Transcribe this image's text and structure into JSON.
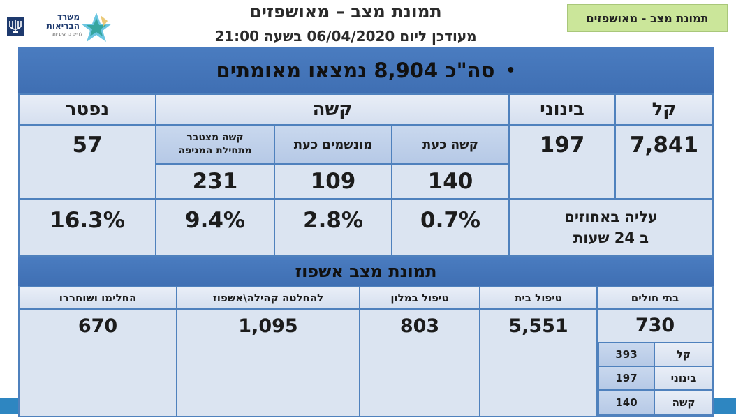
{
  "header": {
    "title": "תמונת מצב – מאושפזים",
    "subtitle": "מעודכן ליום 06/04/2020 בשעה 21:00",
    "badge": "תמונת מצב - מאושפזים"
  },
  "logo": {
    "ministry_line1": "משרד",
    "ministry_line2": "הבריאות",
    "tagline": "לחיים בריאים יותר"
  },
  "summary": {
    "total_text": "סה\"כ 8,904 נמצאו מאומתים",
    "bullet": "•"
  },
  "severity": {
    "headers": {
      "mild": "קל",
      "moderate": "בינוני",
      "severe": "קשה",
      "deceased": "נפטר"
    },
    "severe_sub": {
      "severe_now": "קשה כעת",
      "ventilated_now": "מונשמים כעת",
      "severe_cumulative": "קשה מצטבר מתחילת המגיפה"
    },
    "values": {
      "mild": "7,841",
      "moderate": "197",
      "severe_now": "140",
      "ventilated_now": "109",
      "severe_cumulative": "231",
      "deceased": "57"
    },
    "increase_label": "עליה באחוזים ב 24 שעות",
    "increase": {
      "severe_now": "0.7%",
      "ventilated_now": "2.8%",
      "severe_cumulative": "9.4%",
      "deceased": "16.3%"
    }
  },
  "hospitalization": {
    "title": "תמונת מצב אשפוז",
    "headers": {
      "hospitals": "בתי חולים",
      "home_care": "טיפול בית",
      "hotel_care": "טיפול במלון",
      "pending": "להחלטה קהילה\\אשפוז",
      "recovered": "החלימו ושוחררו"
    },
    "values": {
      "hospitals": "730",
      "home_care": "5,551",
      "hotel_care": "803",
      "pending": "1,095",
      "recovered": "670"
    },
    "hospital_breakdown": [
      {
        "label": "קל",
        "value": "393"
      },
      {
        "label": "בינוני",
        "value": "197"
      },
      {
        "label": "קשה",
        "value": "140"
      }
    ]
  }
}
